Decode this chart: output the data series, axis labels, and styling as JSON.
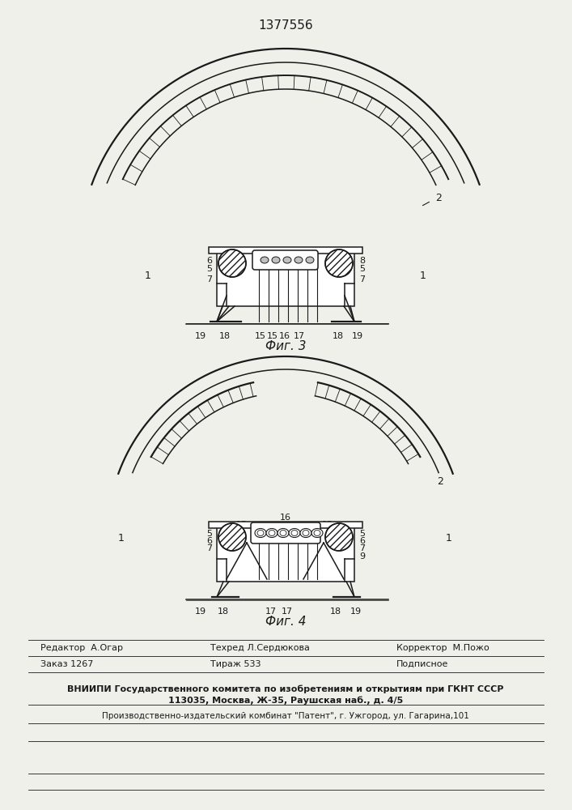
{
  "patent_number": "1377556",
  "fig3_caption": "Фиг. 3",
  "fig4_caption": "Фиг. 4",
  "editor_line": "Редактор  А.Огар",
  "techred_line": "Техред Л.Сердюкова",
  "corrector_line": "Корректор  М.Пожо",
  "order_label": "Заказ 1267",
  "tirazh_label": "Тираж 533",
  "podpisnoe_label": "Подписное",
  "vniiipi_line1": "ВНИИПИ Государственного комитета по изобретениям и открытиям при ГКНТ СССР",
  "vniiipi_line2": "113035, Москва, Ж-35, Раушская наб., д. 4/5",
  "publisher_line": "Производственно-издательский комбинат \"Патент\", г. Ужгород, ул. Гагарина,101",
  "bg_color": "#f0f0eb",
  "line_color": "#1a1a1a"
}
